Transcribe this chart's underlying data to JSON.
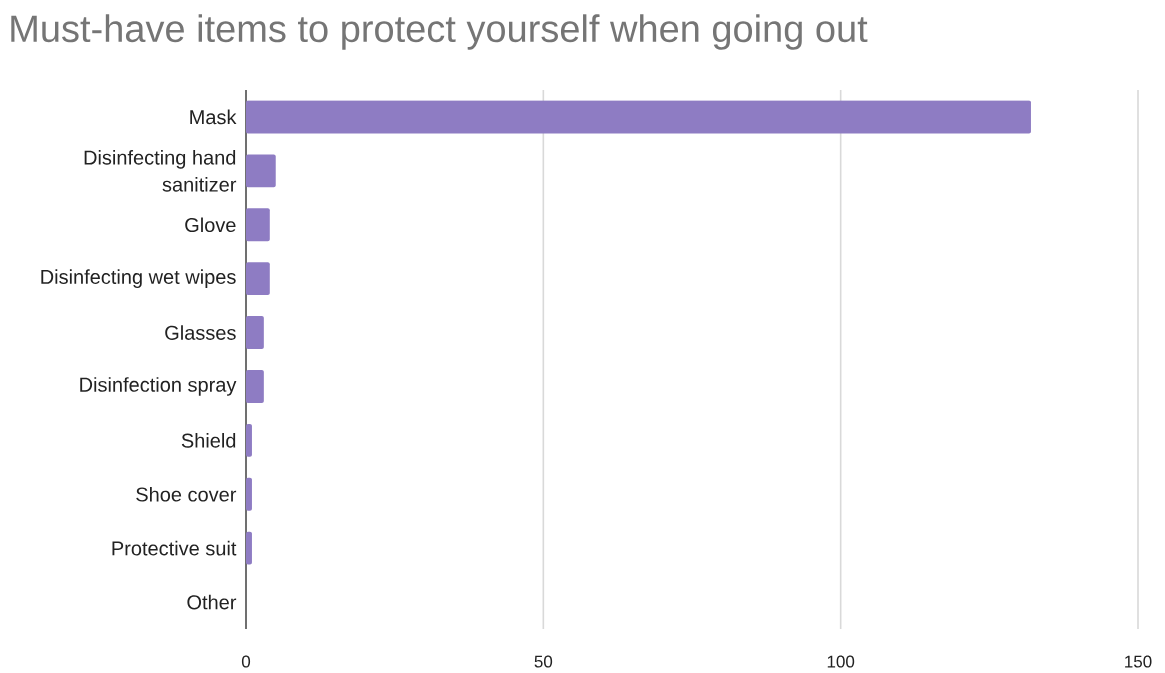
{
  "chart_data": {
    "type": "bar",
    "orientation": "horizontal",
    "title": "Must-have items to protect yourself when going out",
    "categories": [
      "Mask",
      "Disinfecting hand sanitizer",
      "Glove",
      "Disinfecting wet wipes",
      "Glasses",
      "Disinfection spray",
      "Shield",
      "Shoe cover",
      "Protective suit",
      "Other"
    ],
    "values": [
      132,
      5,
      4,
      4,
      3,
      3,
      1,
      1,
      1,
      0
    ],
    "color": "#8e7cc3",
    "xlim": [
      0,
      150
    ],
    "xticks": [
      0,
      50,
      100,
      150
    ],
    "grid": "x"
  }
}
